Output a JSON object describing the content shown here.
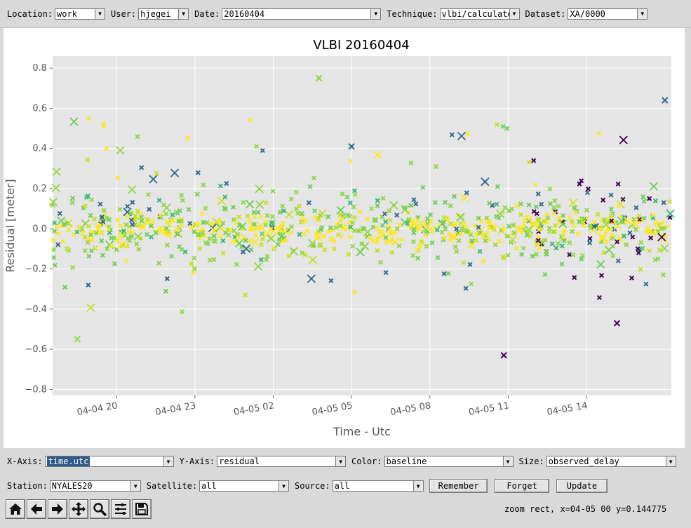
{
  "top_bar": {
    "location": {
      "label": "Location:",
      "value": "work"
    },
    "user": {
      "label": "User:",
      "value": "hjegei"
    },
    "date": {
      "label": "Date:",
      "value": "20160404"
    },
    "technique": {
      "label": "Technique:",
      "value": "vlbi/calculate"
    },
    "dataset": {
      "label": "Dataset:",
      "value": "XA/0000"
    }
  },
  "controls": {
    "x_axis": {
      "label": "X-Axis:",
      "value": "time.utc"
    },
    "y_axis": {
      "label": "Y-Axis:",
      "value": "residual"
    },
    "color": {
      "label": "Color:",
      "value": "baseline"
    },
    "size": {
      "label": "Size:",
      "value": "observed_delay"
    },
    "station": {
      "label": "Station:",
      "value": "NYALES20"
    },
    "satellite": {
      "label": "Satellite:",
      "value": "all"
    },
    "source": {
      "label": "Source:",
      "value": "all"
    },
    "buttons": {
      "remember": "Remember",
      "forget": "Forget",
      "update": "Update"
    }
  },
  "toolbar": {
    "icons": [
      "home-icon",
      "back-arrow-icon",
      "forward-arrow-icon",
      "pan-icon",
      "zoom-icon",
      "subplots-icon",
      "save-icon"
    ]
  },
  "status": "zoom rect, x=04-05 00 y=0.144775",
  "colors": {
    "viridis": [
      "#440154",
      "#31688e",
      "#35b779",
      "#6ece58",
      "#90d743",
      "#c8e020",
      "#fde725"
    ],
    "axes_bg": "#e5e5e5",
    "grid": "#ffffff"
  },
  "chart_data": {
    "type": "scatter",
    "title": "VLBI 20160404",
    "xlabel": "Time - Utc",
    "ylabel": "Residual [meter]",
    "x_ticks": [
      "04-04 20",
      "04-04 23",
      "04-05 02",
      "04-05 05",
      "04-05 08",
      "04-05 11",
      "04-05 14"
    ],
    "y_ticks": [
      "0.8",
      "0.6",
      "0.4",
      "0.2",
      "0.0",
      "−0.2",
      "−0.4",
      "−0.6",
      "−0.8"
    ],
    "xlim": [
      "2016-04-04 17:33",
      "2016-04-05 17:15"
    ],
    "ylim": [
      -0.83,
      0.86
    ],
    "marker": "x",
    "grid": true,
    "outliers": [
      {
        "time": "2016-04-05 17:00",
        "residual": 0.64,
        "color_index": 1
      },
      {
        "time": "2016-04-05 03:45",
        "residual": 0.75,
        "color_index": 4
      },
      {
        "time": "2016-04-05 10:50",
        "residual": -0.63,
        "color_index": 0
      },
      {
        "time": "2016-04-04 18:30",
        "residual": -0.55,
        "color_index": 4
      },
      {
        "time": "2016-04-05 15:10",
        "residual": -0.47,
        "color_index": 0
      },
      {
        "time": "2016-04-05 05:00",
        "residual": 0.41,
        "color_index": 1
      }
    ]
  }
}
